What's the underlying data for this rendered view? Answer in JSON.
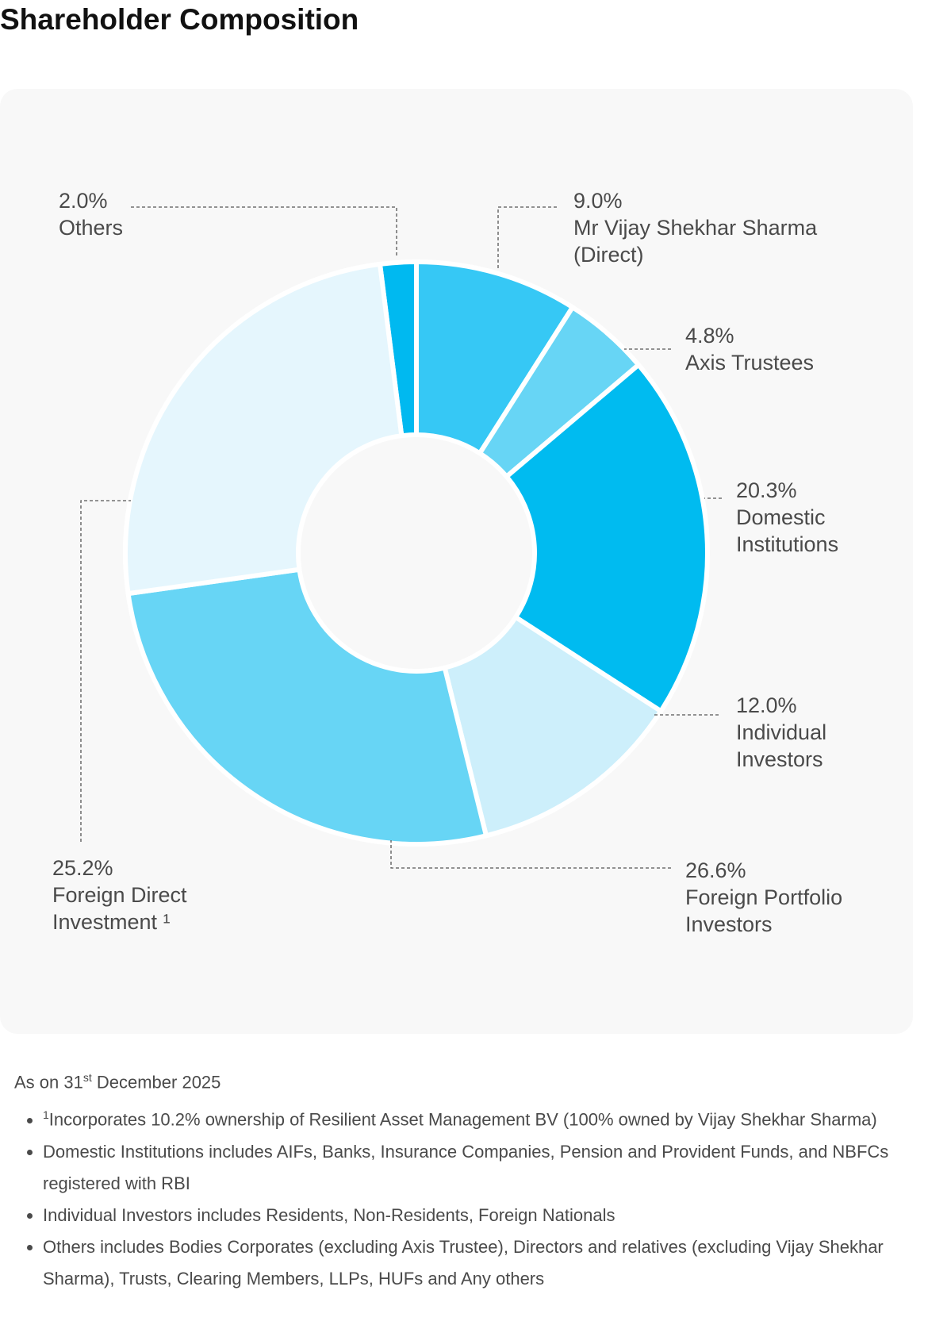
{
  "chart_data": {
    "type": "pie",
    "title": "Shareholder Composition",
    "categories": [
      "Others",
      "Mr Vijay Shekhar Sharma (Direct)",
      "Axis Trustees",
      "Domestic Institutions",
      "Individual Investors",
      "Foreign Portfolio Investors",
      "Foreign Direct Investment ¹"
    ],
    "values": [
      2.0,
      9.0,
      4.8,
      20.3,
      12.0,
      26.6,
      25.2
    ],
    "value_labels": [
      "2.0%",
      "9.0%",
      "4.8%",
      "20.3%",
      "12.0%",
      "26.6%",
      "25.2%"
    ],
    "colors": [
      "#00b9f0",
      "#36c8f5",
      "#67d5f5",
      "#00bbf0",
      "#cdeffb",
      "#67d5f5",
      "#e5f6fd"
    ],
    "donut": true
  },
  "notes": {
    "as_on": "As on 31",
    "as_on_sup": "st",
    "as_on_date": "December 2025",
    "footnote_marker": "1",
    "bullets": [
      "Incorporates 10.2% ownership of Resilient Asset Management BV (100% owned by Vijay Shekhar Sharma)",
      "Domestic Institutions includes AIFs, Banks, Insurance Companies, Pension and Provident Funds, and NBFCs registered with RBI",
      "Individual Investors includes Residents, Non-Residents, Foreign Nationals",
      "Others includes Bodies Corporates (excluding Axis Trustee), Directors and relatives (excluding Vijay Shekhar Sharma), Trusts, Clearing Members, LLPs, HUFs and Any others"
    ]
  }
}
